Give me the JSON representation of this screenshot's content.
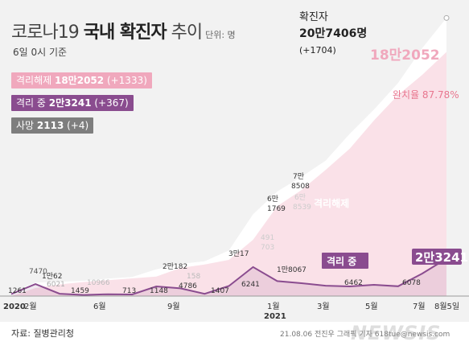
{
  "title": {
    "prefix": "코로나19 ",
    "bold": "국내 확진자",
    "suffix": " 추이",
    "unit": "단위: 명"
  },
  "date_note": "6일 0시 기준",
  "legend": {
    "released": {
      "label": "격리해제 ",
      "value": "18만2052",
      "delta": " (+1333)"
    },
    "isolated": {
      "label": "격리 중 ",
      "value": "2만3241",
      "delta": " (+367)"
    },
    "deaths": {
      "label": "사망 ",
      "value": "2113",
      "delta": " (+4)"
    }
  },
  "total": {
    "label": "확진자",
    "value": "20만7406명",
    "delta": "(+1704)"
  },
  "source": "자료: 질병관리청",
  "credit": "21.08.06 전진우 그래픽 기자 618tue@newsis.com",
  "watermark": "NEWSIS",
  "colors": {
    "released": "#f0a8bd",
    "isolated": "#8a4c8f",
    "deaths": "#7e7e7e",
    "total": "#ffffff",
    "background": "#f2f2f2"
  },
  "chart_data": {
    "type": "area",
    "x": [
      "2020-02",
      "2020-03",
      "2020-04",
      "2020-05",
      "2020-06",
      "2020-07",
      "2020-08",
      "2020-09",
      "2020-10",
      "2020-11",
      "2020-12",
      "2021-01",
      "2021-02",
      "2021-03",
      "2021-04",
      "2021-05",
      "2021-06",
      "2021-07",
      "2021-08-05"
    ],
    "xticks": [
      "2020",
      "2월",
      "6월",
      "9월",
      "1월",
      "2021",
      "3월",
      "5월",
      "7월",
      "8월5일"
    ],
    "series": [
      {
        "name": "확진자",
        "values": [
          3000,
          10000,
          10700,
          11400,
          13000,
          14200,
          20000,
          24000,
          26000,
          34000,
          61000,
          78000,
          89000,
          101000,
          121000,
          139000,
          159000,
          185000,
          207406
        ]
      },
      {
        "name": "격리해제",
        "values": [
          40,
          6000,
          8700,
          10500,
          11900,
          13200,
          14500,
          21000,
          23500,
          27000,
          42000,
          67000,
          79000,
          94000,
          110000,
          131000,
          150000,
          165000,
          182052
        ]
      },
      {
        "name": "격리 중",
        "values": [
          1261,
          7470,
          1459,
          713,
          1148,
          1000,
          6000,
          4786,
          1407,
          6241,
          18067,
          9300,
          8000,
          6462,
          6000,
          7000,
          6078,
          14000,
          23241
        ]
      }
    ],
    "annotations": [
      "1261",
      "7470",
      "1만62",
      "6021",
      "1459",
      "10966",
      "713",
      "1148",
      "2만182",
      "158",
      "4786",
      "1407",
      "3만17",
      "6241",
      "491",
      "703",
      "6만",
      "1769",
      "7만",
      "8508",
      "6만",
      "8539",
      "1만8067",
      "6462",
      "6078",
      "18만2052",
      "완치율 87.78%",
      "격리해제",
      "격리 중",
      "2만3241"
    ],
    "ylim": [
      0,
      210000
    ]
  }
}
